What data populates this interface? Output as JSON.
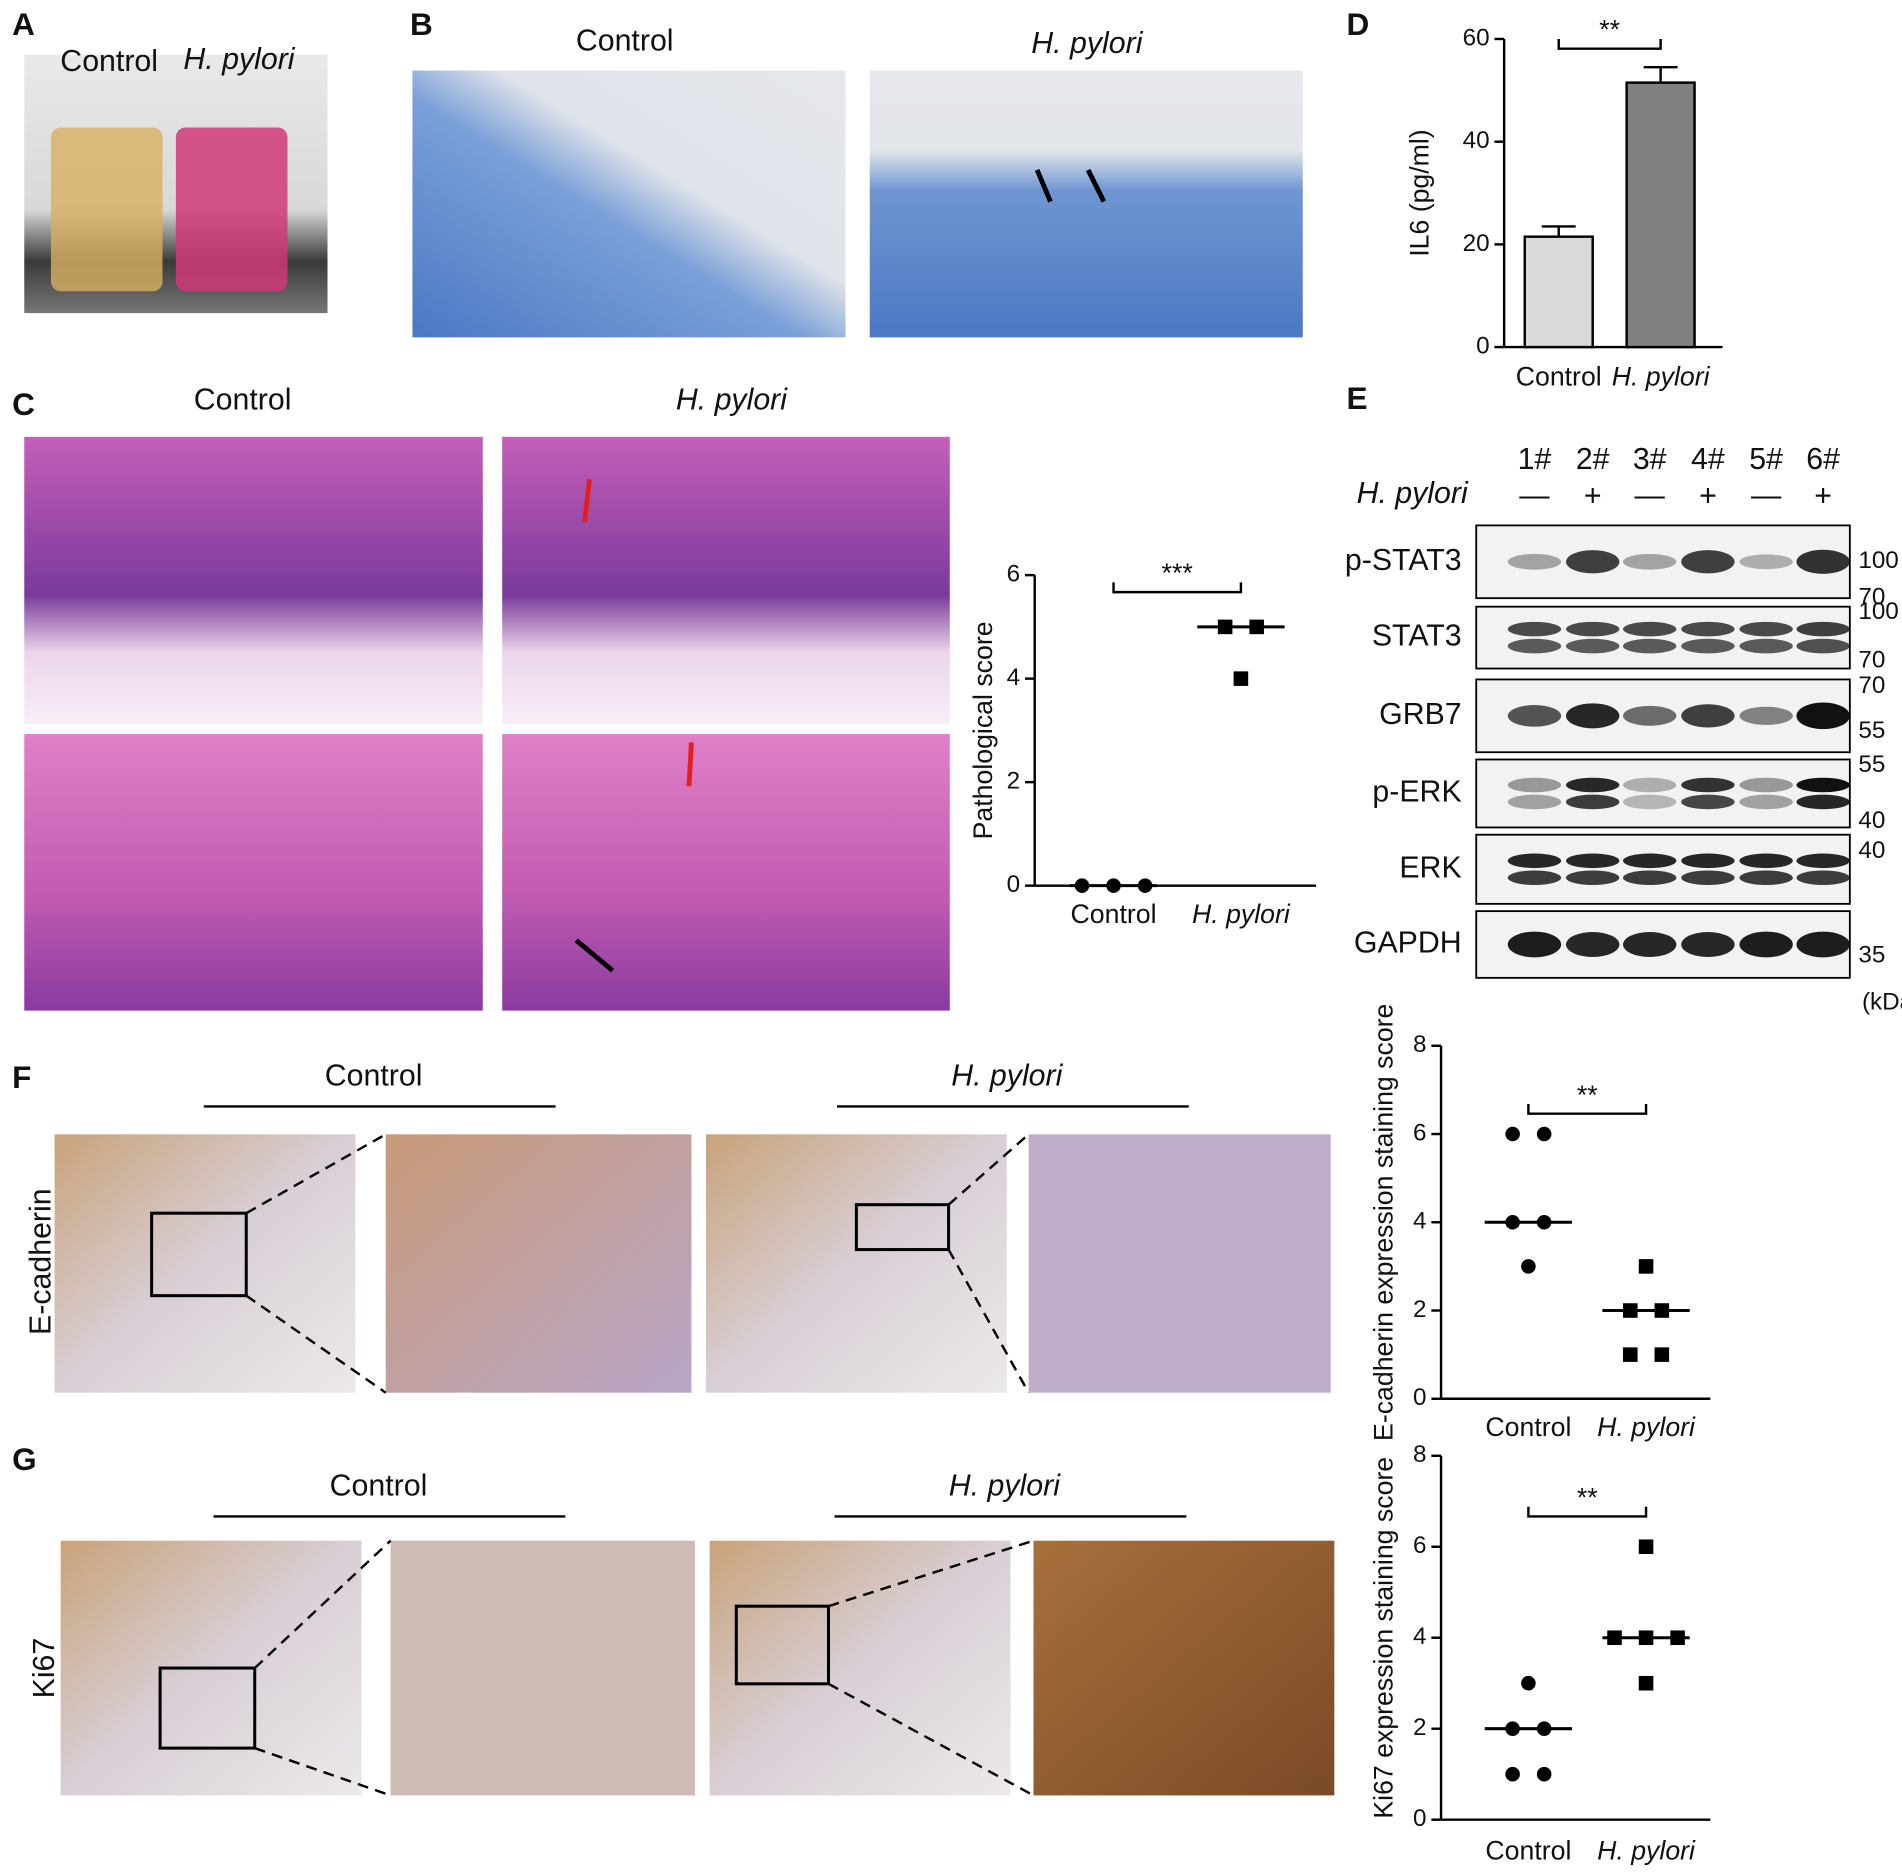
{
  "panels": [
    "A",
    "B",
    "C",
    "D",
    "E",
    "F",
    "G"
  ],
  "panel_a": {
    "labels": [
      "Control",
      "H. pylori"
    ]
  },
  "panel_b": {
    "labels": [
      "Control",
      "H. pylori"
    ]
  },
  "panel_c": {
    "labels": [
      "Control",
      "H. pylori"
    ]
  },
  "blot": {
    "lanes": [
      "1#",
      "2#",
      "3#",
      "4#",
      "5#",
      "6#"
    ],
    "treatment_label": "H. pylori",
    "treatment": [
      "—",
      "+",
      "—",
      "+",
      "—",
      "+"
    ],
    "rows": [
      {
        "label": "p-STAT3",
        "markers": [
          "100",
          "70"
        ]
      },
      {
        "label": "STAT3",
        "markers": [
          "100",
          "70"
        ]
      },
      {
        "label": "GRB7",
        "markers": [
          "70",
          "55"
        ]
      },
      {
        "label": "p-ERK",
        "markers": [
          "55",
          "40"
        ]
      },
      {
        "label": "ERK",
        "markers": [
          "40"
        ]
      },
      {
        "label": "GAPDH",
        "markers": [
          "35"
        ]
      }
    ],
    "unit": "(kDa)"
  },
  "panel_f": {
    "row_label": "E-cadherin",
    "groups": [
      "Control",
      "H. pylori"
    ]
  },
  "panel_g": {
    "row_label": "Ki67",
    "groups": [
      "Control",
      "H. pylori"
    ]
  },
  "chart_data": [
    {
      "type": "bar",
      "ylabel": "IL6 (pg/ml)",
      "categories": [
        "Control",
        "H. pylori"
      ],
      "values": [
        21.5,
        51.5
      ],
      "errors": [
        2,
        3
      ],
      "colors": [
        "#d9d9d9",
        "#808080"
      ],
      "ylim": [
        0,
        60
      ],
      "yticks": [
        0,
        20,
        40,
        60
      ],
      "significance": "**"
    },
    {
      "type": "scatter",
      "ylabel": "Pathological score",
      "categories": [
        "Control",
        "H. pylori"
      ],
      "values": [
        [
          0,
          0,
          0
        ],
        [
          5,
          5,
          4
        ]
      ],
      "medians": [
        0,
        5
      ],
      "ylim": [
        0,
        6
      ],
      "yticks": [
        0,
        2,
        4,
        6
      ],
      "significance": "***"
    },
    {
      "type": "scatter",
      "ylabel": "E-cadherin expression staining score",
      "categories": [
        "Control",
        "H. pylori"
      ],
      "values": [
        [
          6,
          6,
          4,
          4,
          3
        ],
        [
          3,
          2,
          2,
          1,
          1
        ]
      ],
      "medians": [
        4,
        2
      ],
      "ylim": [
        0,
        8
      ],
      "yticks": [
        0,
        2,
        4,
        6,
        8
      ],
      "significance": "**"
    },
    {
      "type": "scatter",
      "ylabel": "Ki67 expression staining score",
      "categories": [
        "Control",
        "H. pylori"
      ],
      "values": [
        [
          3,
          2,
          2,
          1,
          1
        ],
        [
          6,
          4,
          4,
          4,
          3
        ]
      ],
      "medians": [
        2,
        4
      ],
      "ylim": [
        0,
        8
      ],
      "yticks": [
        0,
        2,
        4,
        6,
        8
      ],
      "significance": "**"
    }
  ]
}
